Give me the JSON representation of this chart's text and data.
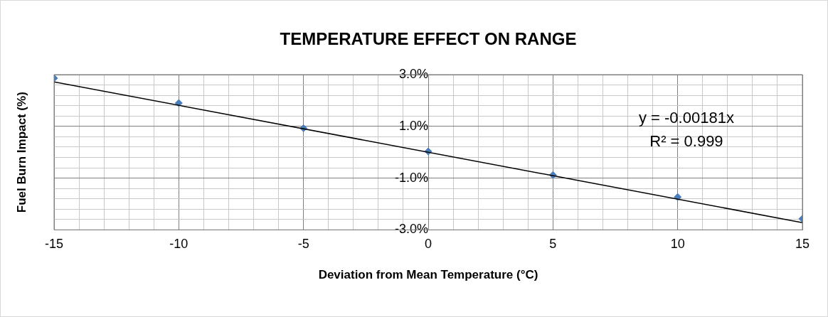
{
  "chart_data": {
    "type": "scatter",
    "title": "TEMPERATURE EFFECT ON RANGE",
    "xlabel": "Deviation from Mean Temperature (°C)",
    "ylabel": "Fuel Burn Impact (%)",
    "series": [
      {
        "color": "#4a7ebb",
        "marker": "diamond",
        "x": [
          -15,
          -10,
          -5,
          0,
          5,
          10,
          15
        ],
        "values": [
          2.86,
          1.9,
          0.93,
          0.03,
          -0.88,
          -1.73,
          -2.57
        ]
      },
      {
        "type": "line",
        "color": "#000000",
        "marker": "none",
        "x": [
          -15,
          15
        ],
        "values": [
          2.72,
          -2.72
        ]
      }
    ],
    "xlim": [
      -15,
      15
    ],
    "xticks": [
      -15,
      {
        "value": -14,
        "label": null
      },
      {
        "value": -13,
        "label": null
      },
      {
        "value": -12,
        "label": null
      },
      {
        "value": -11,
        "label": null
      },
      -10,
      {
        "value": -9,
        "label": null
      },
      {
        "value": -8,
        "label": null
      },
      {
        "value": -7,
        "label": null
      },
      {
        "value": -6,
        "label": null
      },
      -5,
      {
        "value": -4,
        "label": null
      },
      {
        "value": -3,
        "label": null
      },
      {
        "value": -2,
        "label": null
      },
      {
        "value": -1,
        "label": null
      },
      0,
      {
        "value": 1,
        "label": null
      },
      {
        "value": 2,
        "label": null
      },
      {
        "value": 3,
        "label": null
      },
      {
        "value": 4,
        "label": null
      },
      5,
      {
        "value": 6,
        "label": null
      },
      {
        "value": 7,
        "label": null
      },
      {
        "value": 8,
        "label": null
      },
      {
        "value": 9,
        "label": null
      },
      10,
      {
        "value": 11,
        "label": null
      },
      {
        "value": 12,
        "label": null
      },
      {
        "value": 13,
        "label": null
      },
      {
        "value": 14,
        "label": null
      },
      15
    ],
    "ylim": [
      -3,
      3
    ],
    "yticks": [
      {
        "value": -3,
        "label": "-3.0%"
      },
      {
        "value": -2.6,
        "label": null
      },
      {
        "value": -2.2,
        "label": null
      },
      {
        "value": -1.8,
        "label": null
      },
      {
        "value": -1.4,
        "label": null
      },
      {
        "value": -1,
        "label": "-1.0%"
      },
      {
        "value": -0.6,
        "label": null
      },
      {
        "value": -0.2,
        "label": null
      },
      {
        "value": 0.2,
        "label": null
      },
      {
        "value": 0.6,
        "label": null
      },
      {
        "value": 1,
        "label": "1.0%"
      },
      {
        "value": 1.4,
        "label": null
      },
      {
        "value": 1.8,
        "label": null
      },
      {
        "value": 2.2,
        "label": null
      },
      {
        "value": 2.6,
        "label": null
      },
      {
        "value": 3,
        "label": "3.0%"
      }
    ],
    "grid": true,
    "legend": false,
    "annotations": [
      "y = -0.00181x",
      "R² = 0.999"
    ]
  }
}
